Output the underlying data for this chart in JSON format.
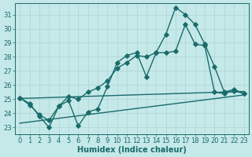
{
  "xlabel": "Humidex (Indice chaleur)",
  "background_color": "#c5e8e8",
  "grid_color": "#aed4d4",
  "line_color": "#1a6b6b",
  "xlim": [
    -0.5,
    23.5
  ],
  "ylim": [
    22.5,
    31.8
  ],
  "yticks": [
    23,
    24,
    25,
    26,
    27,
    28,
    29,
    30,
    31
  ],
  "xticks": [
    0,
    1,
    2,
    3,
    4,
    5,
    6,
    7,
    8,
    9,
    10,
    11,
    12,
    13,
    14,
    15,
    16,
    17,
    18,
    19,
    20,
    21,
    22,
    23
  ],
  "curve1_x": [
    0,
    1,
    2,
    3,
    4,
    5,
    6,
    7,
    8,
    9,
    10,
    11,
    12,
    13,
    14,
    15,
    16,
    17,
    18,
    19,
    20,
    21,
    22,
    23
  ],
  "curve1_y": [
    25.1,
    24.7,
    23.8,
    23.0,
    24.5,
    24.9,
    23.1,
    24.1,
    24.3,
    25.9,
    27.6,
    28.1,
    28.3,
    26.6,
    28.3,
    29.6,
    31.5,
    31.0,
    30.3,
    28.9,
    27.3,
    25.5,
    25.7,
    25.4
  ],
  "curve2_x": [
    0,
    1,
    2,
    3,
    4,
    5,
    6,
    7,
    8,
    9,
    10,
    11,
    12,
    13,
    14,
    15,
    16,
    17,
    18,
    19,
    20,
    21,
    22,
    23
  ],
  "curve2_y": [
    25.1,
    24.6,
    23.9,
    23.5,
    24.5,
    25.2,
    25.0,
    25.5,
    25.8,
    26.3,
    27.2,
    27.6,
    28.1,
    28.0,
    28.3,
    28.3,
    28.4,
    30.3,
    28.9,
    28.8,
    25.5,
    25.4,
    25.6,
    25.4
  ],
  "line1_x": [
    0,
    23
  ],
  "line1_y": [
    25.05,
    25.55
  ],
  "line2_x": [
    0,
    23
  ],
  "line2_y": [
    23.3,
    25.3
  ],
  "font_size_label": 7,
  "font_size_tick": 6,
  "marker_size": 2.8,
  "line_width": 1.0
}
